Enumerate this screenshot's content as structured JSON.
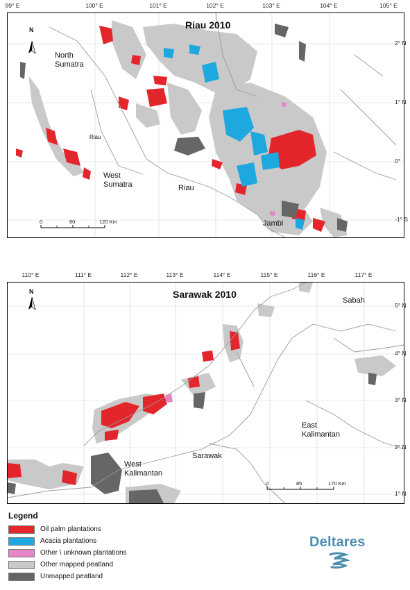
{
  "colors": {
    "oil_palm": "#e3262b",
    "acacia": "#1ea8e0",
    "other_plantations": "#e586c6",
    "other_peat": "#c9c9c9",
    "unmapped_peat": "#666666",
    "boundary": "#9a9a9a",
    "logo": "#4b8fb0"
  },
  "riau_map": {
    "title": "Riau 2010",
    "north_label": "N",
    "lon_labels": [
      "99° E",
      "100° E",
      "101° E",
      "102° E",
      "103° E",
      "104° E",
      "105° E"
    ],
    "lat_labels": [
      "2° N",
      "1° N",
      "0°",
      "-1° S"
    ],
    "places": {
      "north_sumatra": [
        "North",
        "Sumatra"
      ],
      "riau_small": "Riau",
      "west_sumatra": [
        "West",
        "Sumatra"
      ],
      "riau": "Riau",
      "jambi": "Jambi"
    },
    "scale": {
      "labels": [
        "0",
        "60",
        "120 Km"
      ]
    }
  },
  "sarawak_map": {
    "title": "Sarawak 2010",
    "north_label": "N",
    "lon_labels": [
      "110° E",
      "111° E",
      "112° E",
      "113° E",
      "114° E",
      "115° E",
      "116° E",
      "117° E"
    ],
    "lat_labels": [
      "5° N",
      "4° N",
      "3° N",
      "2° N",
      "1° N"
    ],
    "places": {
      "sabah": "Sabah",
      "east_kalimantan": [
        "East",
        "Kalimantan"
      ],
      "sarawak": "Sarawak",
      "west_kalimantan": [
        "West",
        "Kalimantan"
      ]
    },
    "scale": {
      "labels": [
        "0",
        "85",
        "170 Km"
      ]
    }
  },
  "legend": {
    "title": "Legend",
    "items": [
      {
        "label": "Oil palm plantations",
        "color": "#e3262b"
      },
      {
        "label": "Acacia plantations",
        "color": "#1ea8e0"
      },
      {
        "label": "Other \\ unknown plantations",
        "color": "#e586c6"
      },
      {
        "label": "Other mapped peatland",
        "color": "#c9c9c9"
      },
      {
        "label": "Unmapped peatland",
        "color": "#666666"
      }
    ]
  },
  "logo": {
    "text": "Deltares"
  }
}
